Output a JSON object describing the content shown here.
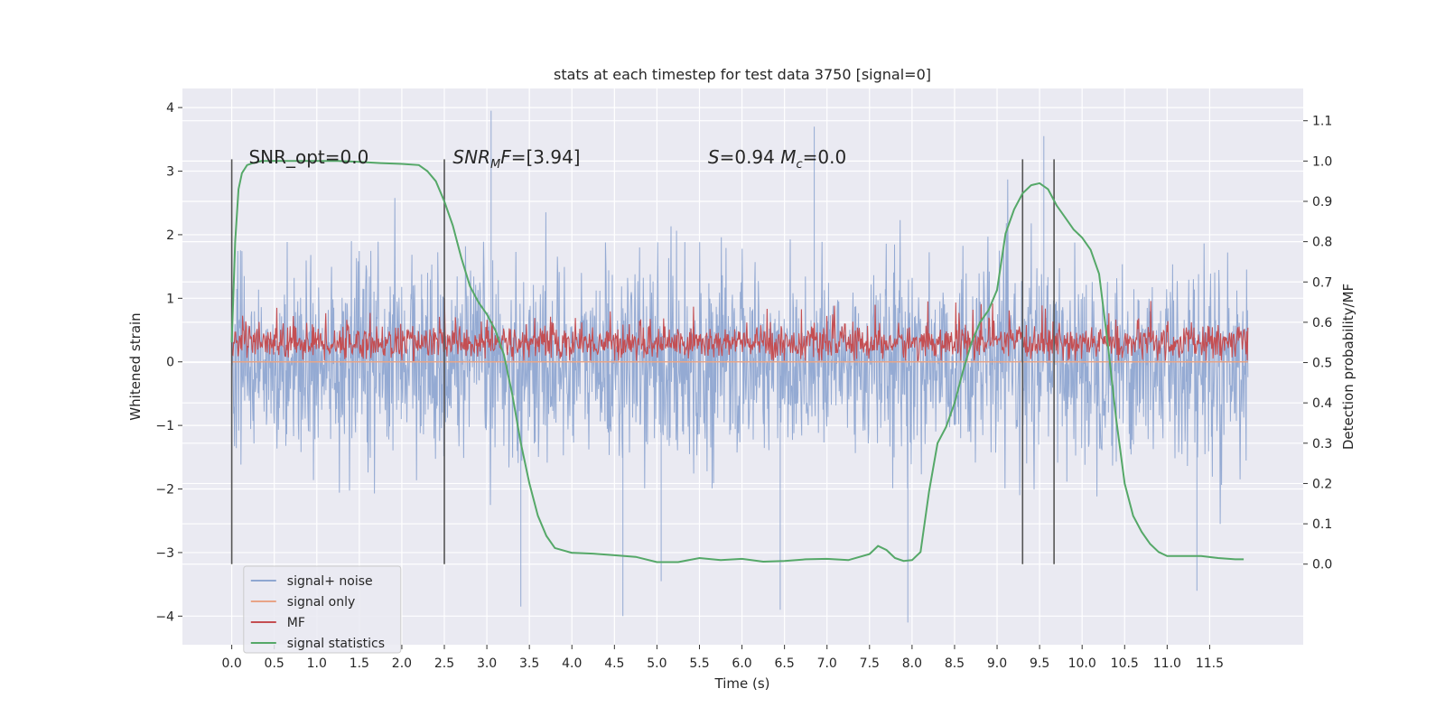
{
  "chart_data": {
    "type": "line",
    "title": "stats at each timestep for test data 3750 [signal=0]",
    "xlabel": "Time (s)",
    "ylabel": "Whitened strain",
    "ylabel_right": "Detection probability/MF",
    "xlim": [
      -0.58,
      12.6
    ],
    "ylim": [
      -4.45,
      4.3
    ],
    "ylim_right": [
      -0.2,
      1.18
    ],
    "x_ticks": [
      0.0,
      0.5,
      1.0,
      1.5,
      2.0,
      2.5,
      3.0,
      3.5,
      4.0,
      4.5,
      5.0,
      5.5,
      6.0,
      6.5,
      7.0,
      7.5,
      8.0,
      8.5,
      9.0,
      9.5,
      10.0,
      10.5,
      11.0,
      11.5
    ],
    "x_tick_labels": [
      "0.0",
      "0.5",
      "1.0",
      "1.5",
      "2.0",
      "2.5",
      "3.0",
      "3.5",
      "4.0",
      "4.5",
      "5.0",
      "5.5",
      "6.0",
      "6.5",
      "7.0",
      "7.5",
      "8.0",
      "8.5",
      "9.0",
      "9.5",
      "10.0",
      "10.5",
      "11.0",
      "11.5"
    ],
    "y_ticks": [
      -4,
      -3,
      -2,
      -1,
      0,
      1,
      2,
      3,
      4
    ],
    "y_tick_labels": [
      "−4",
      "−3",
      "−2",
      "−1",
      "0",
      "1",
      "2",
      "3",
      "4"
    ],
    "y_right_ticks": [
      0.0,
      0.1,
      0.2,
      0.3,
      0.4,
      0.5,
      0.6,
      0.7,
      0.8,
      0.9,
      1.0,
      1.1
    ],
    "y_right_tick_labels": [
      "0.0",
      "0.1",
      "0.2",
      "0.3",
      "0.4",
      "0.5",
      "0.6",
      "0.7",
      "0.8",
      "0.9",
      "1.0",
      "1.1"
    ],
    "grid": true,
    "annotations": [
      {
        "parts": [
          {
            "t": "SNR_opt=0.0",
            "i": false
          }
        ],
        "x": 0.2,
        "y": 3.05
      },
      {
        "parts": [
          {
            "t": "SNR",
            "i": true
          },
          {
            "t": "M",
            "i": true,
            "sub": true
          },
          {
            "t": "F",
            "i": true
          },
          {
            "t": "=[3.94]",
            "i": false
          }
        ],
        "x": 2.6,
        "y": 3.05
      },
      {
        "parts": [
          {
            "t": "S",
            "i": true
          },
          {
            "t": "=0.94   ",
            "i": false
          },
          {
            "t": "M",
            "i": true
          },
          {
            "t": "c",
            "i": true,
            "sub": true
          },
          {
            "t": "=0.0",
            "i": false
          }
        ],
        "x": 5.6,
        "y": 3.05
      }
    ],
    "vlines": {
      "x": [
        0.0,
        2.5,
        9.3,
        9.67
      ],
      "ymin_right": 0.0,
      "ymax_right": 1.0,
      "color": "#555555"
    },
    "legend_position": "lower left",
    "series": [
      {
        "name": "signal+ noise",
        "kind": "noise-band",
        "axis": "left",
        "color": "#8fa7d1",
        "x_range": [
          0.0,
          11.95
        ],
        "typical_range": [
          -2.0,
          2.2
        ],
        "extreme_range": [
          -4.1,
          3.95
        ],
        "peaks": [
          {
            "x": 3.05,
            "y": 3.95
          },
          {
            "x": 6.85,
            "y": 3.7
          },
          {
            "x": 9.55,
            "y": 3.55
          },
          {
            "x": 3.4,
            "y": -3.85
          },
          {
            "x": 4.6,
            "y": -4.0
          },
          {
            "x": 6.45,
            "y": -3.9
          },
          {
            "x": 7.95,
            "y": -4.1
          },
          {
            "x": 11.35,
            "y": -3.6
          },
          {
            "x": 5.05,
            "y": -3.45
          }
        ]
      },
      {
        "name": "signal only",
        "kind": "line",
        "axis": "left",
        "color": "#e8a487",
        "x": [
          0.0,
          11.95
        ],
        "y": [
          0.0,
          0.0
        ]
      },
      {
        "name": "MF",
        "kind": "mf-band",
        "axis": "left",
        "color": "#c44e52",
        "x_range": [
          0.0,
          11.95
        ],
        "typical_range": [
          0.05,
          0.6
        ],
        "max": 1.0
      },
      {
        "name": "signal statistics",
        "kind": "line",
        "axis": "right",
        "color": "#55a868",
        "x": [
          0.0,
          0.04,
          0.08,
          0.12,
          0.18,
          0.25,
          0.35,
          0.5,
          0.75,
          1.0,
          1.25,
          1.5,
          1.75,
          2.0,
          2.2,
          2.3,
          2.4,
          2.5,
          2.6,
          2.7,
          2.8,
          2.9,
          3.0,
          3.1,
          3.2,
          3.3,
          3.4,
          3.5,
          3.6,
          3.7,
          3.8,
          4.0,
          4.25,
          4.5,
          4.75,
          5.0,
          5.25,
          5.5,
          5.75,
          6.0,
          6.25,
          6.5,
          6.75,
          7.0,
          7.25,
          7.5,
          7.6,
          7.7,
          7.8,
          7.9,
          8.0,
          8.1,
          8.2,
          8.3,
          8.4,
          8.5,
          8.6,
          8.7,
          8.8,
          8.9,
          9.0,
          9.1,
          9.2,
          9.3,
          9.4,
          9.5,
          9.6,
          9.7,
          9.8,
          9.9,
          10.0,
          10.1,
          10.2,
          10.3,
          10.4,
          10.5,
          10.6,
          10.7,
          10.8,
          10.9,
          11.0,
          11.2,
          11.4,
          11.6,
          11.8,
          11.9
        ],
        "y": [
          0.55,
          0.8,
          0.93,
          0.97,
          0.99,
          0.995,
          1.0,
          1.0,
          1.0,
          1.0,
          1.0,
          0.998,
          0.995,
          0.993,
          0.99,
          0.975,
          0.95,
          0.9,
          0.84,
          0.76,
          0.69,
          0.65,
          0.62,
          0.58,
          0.52,
          0.42,
          0.3,
          0.2,
          0.12,
          0.07,
          0.04,
          0.028,
          0.026,
          0.022,
          0.018,
          0.005,
          0.005,
          0.015,
          0.01,
          0.013,
          0.006,
          0.008,
          0.012,
          0.013,
          0.01,
          0.025,
          0.045,
          0.035,
          0.015,
          0.008,
          0.01,
          0.03,
          0.18,
          0.3,
          0.34,
          0.4,
          0.48,
          0.55,
          0.6,
          0.63,
          0.68,
          0.82,
          0.88,
          0.92,
          0.94,
          0.945,
          0.93,
          0.89,
          0.86,
          0.83,
          0.81,
          0.78,
          0.72,
          0.55,
          0.36,
          0.2,
          0.12,
          0.08,
          0.05,
          0.03,
          0.02,
          0.02,
          0.02,
          0.015,
          0.012,
          0.012
        ]
      }
    ]
  }
}
